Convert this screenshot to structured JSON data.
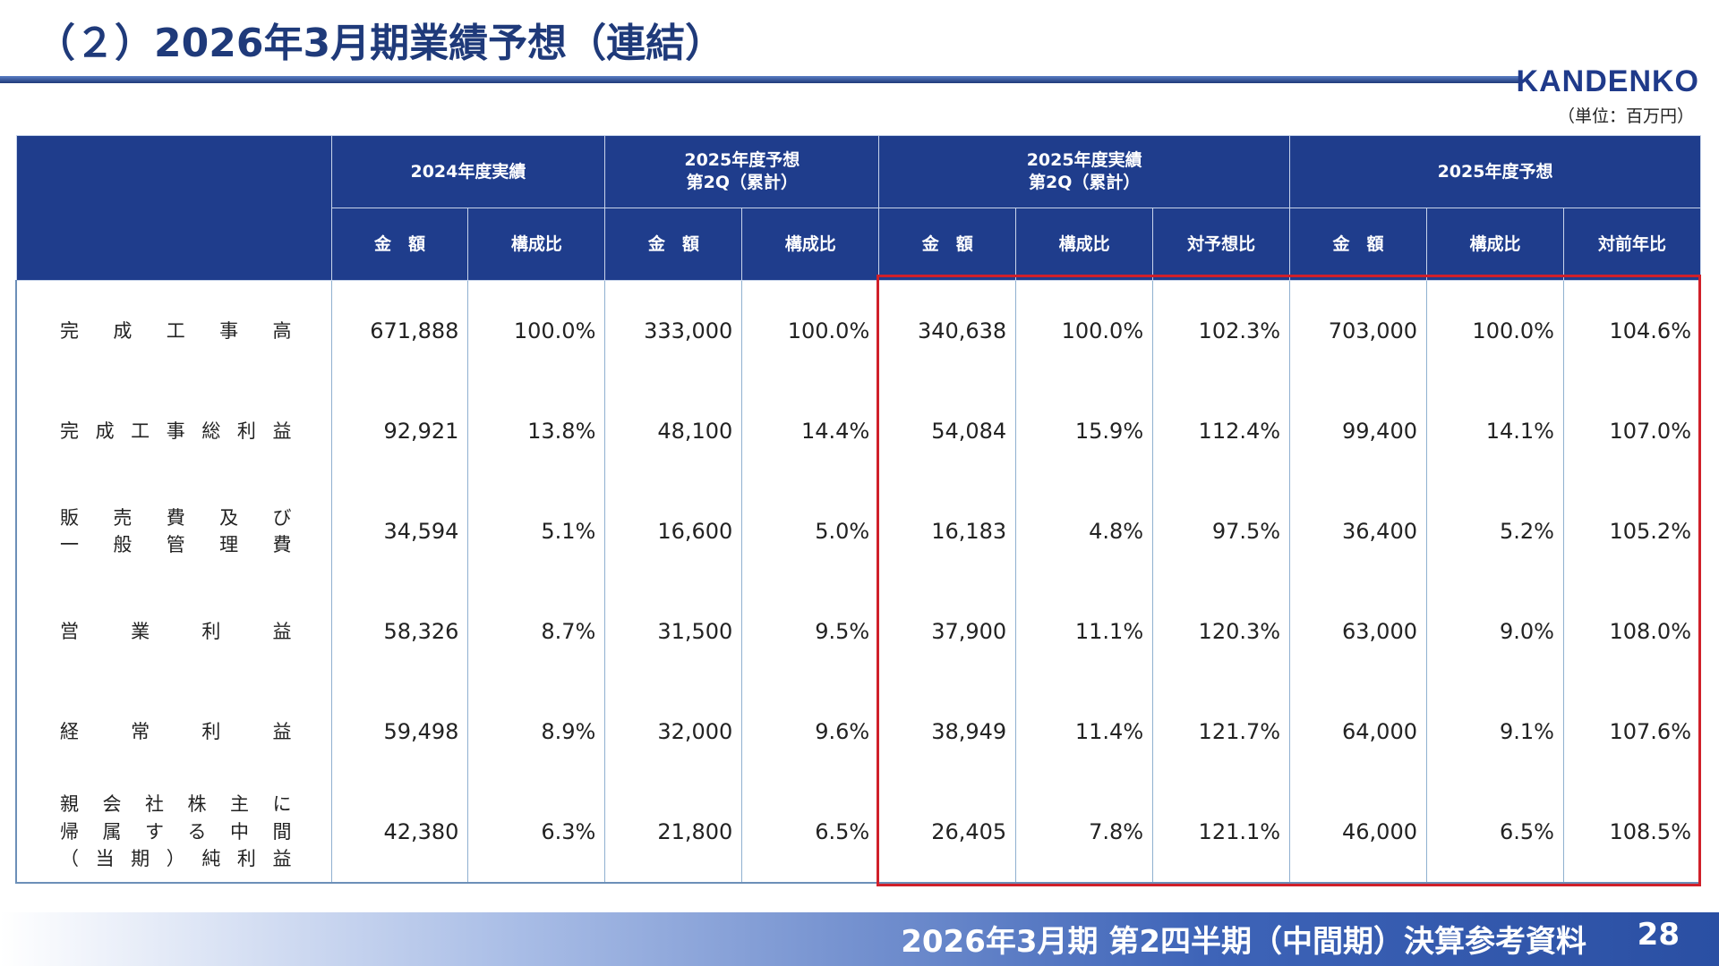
{
  "header": {
    "title": "（２）2026年3月期業績予想（連結）",
    "logo": "KANDENKO",
    "unit": "（単位：百万円）"
  },
  "table": {
    "groups": [
      [
        "2024年度実績"
      ],
      [
        "2025年度予想",
        "第2Q（累計）"
      ],
      [
        "2025年度実績",
        "第2Q（累計）"
      ],
      [
        "2025年度予想"
      ]
    ],
    "columns": [
      "金　額",
      "構成比",
      "金　額",
      "構成比",
      "金　額",
      "構成比",
      "対予想比",
      "金　額",
      "構成比",
      "対前年比"
    ],
    "rows": [
      {
        "label": [
          "完成工事高"
        ],
        "cells": [
          "671,888",
          "100.0%",
          "333,000",
          "100.0%",
          "340,638",
          "100.0%",
          "102.3%",
          "703,000",
          "100.0%",
          "104.6%"
        ]
      },
      {
        "label": [
          "完成工事総利益"
        ],
        "cells": [
          "92,921",
          "13.8%",
          "48,100",
          "14.4%",
          "54,084",
          "15.9%",
          "112.4%",
          "99,400",
          "14.1%",
          "107.0%"
        ]
      },
      {
        "label": [
          "販売費及び",
          "一般管理費"
        ],
        "cells": [
          "34,594",
          "5.1%",
          "16,600",
          "5.0%",
          "16,183",
          "4.8%",
          "97.5%",
          "36,400",
          "5.2%",
          "105.2%"
        ]
      },
      {
        "label": [
          "営業利益"
        ],
        "cells": [
          "58,326",
          "8.7%",
          "31,500",
          "9.5%",
          "37,900",
          "11.1%",
          "120.3%",
          "63,000",
          "9.0%",
          "108.0%"
        ]
      },
      {
        "label": [
          "経常利益"
        ],
        "cells": [
          "59,498",
          "8.9%",
          "32,000",
          "9.6%",
          "38,949",
          "11.4%",
          "121.7%",
          "64,000",
          "9.1%",
          "107.6%"
        ]
      },
      {
        "label": [
          "親会社株主に",
          "帰属する中間",
          "（当期）純利益"
        ],
        "cells": [
          "42,380",
          "6.3%",
          "21,800",
          "6.5%",
          "26,405",
          "7.8%",
          "121.1%",
          "46,000",
          "6.5%",
          "108.5%"
        ]
      }
    ]
  },
  "footer": {
    "text": "2026年3月期 第2四半期（中間期）決算参考資料",
    "page": "28"
  }
}
